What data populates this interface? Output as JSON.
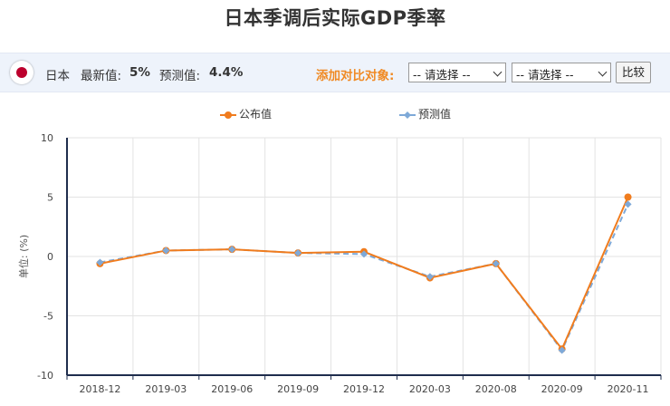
{
  "page_title": "日本季调后实际GDP季率",
  "infobar": {
    "country": "日本",
    "latest_label": "最新值:",
    "latest_value": "5%",
    "forecast_label": "预测值:",
    "forecast_value": "4.4%",
    "compare_label": "添加对比对象:",
    "select1_value": "-- 请选择 --",
    "select2_value": "-- 请选择 --",
    "compare_button": "比较",
    "flag_icon": "japan-flag-icon"
  },
  "colors": {
    "actual": "#f07c1e",
    "forecast": "#7ea9d8",
    "axis": "#1f2d4d",
    "grid": "#e3e3e3"
  },
  "chart_data": {
    "type": "line",
    "title": "日本季调后实际GDP季率",
    "ylabel": "单位: (%)",
    "xlabel": "",
    "ylim": [
      -10,
      10
    ],
    "yticks": [
      10,
      5,
      0,
      -5,
      -10
    ],
    "categories": [
      "2018-12",
      "2019-03",
      "2019-06",
      "2019-09",
      "2019-12",
      "2020-03",
      "2020-08",
      "2020-09",
      "2020-11"
    ],
    "grid": true,
    "legend_position": "top-center",
    "series": [
      {
        "name": "公布值",
        "style": "solid",
        "values": [
          -0.6,
          0.5,
          0.6,
          0.3,
          0.4,
          -1.8,
          -0.6,
          -7.8,
          5.0
        ]
      },
      {
        "name": "预测值",
        "style": "dashed",
        "values": [
          -0.5,
          0.5,
          0.6,
          0.3,
          0.2,
          -1.7,
          -0.6,
          -7.9,
          4.4
        ]
      }
    ]
  }
}
